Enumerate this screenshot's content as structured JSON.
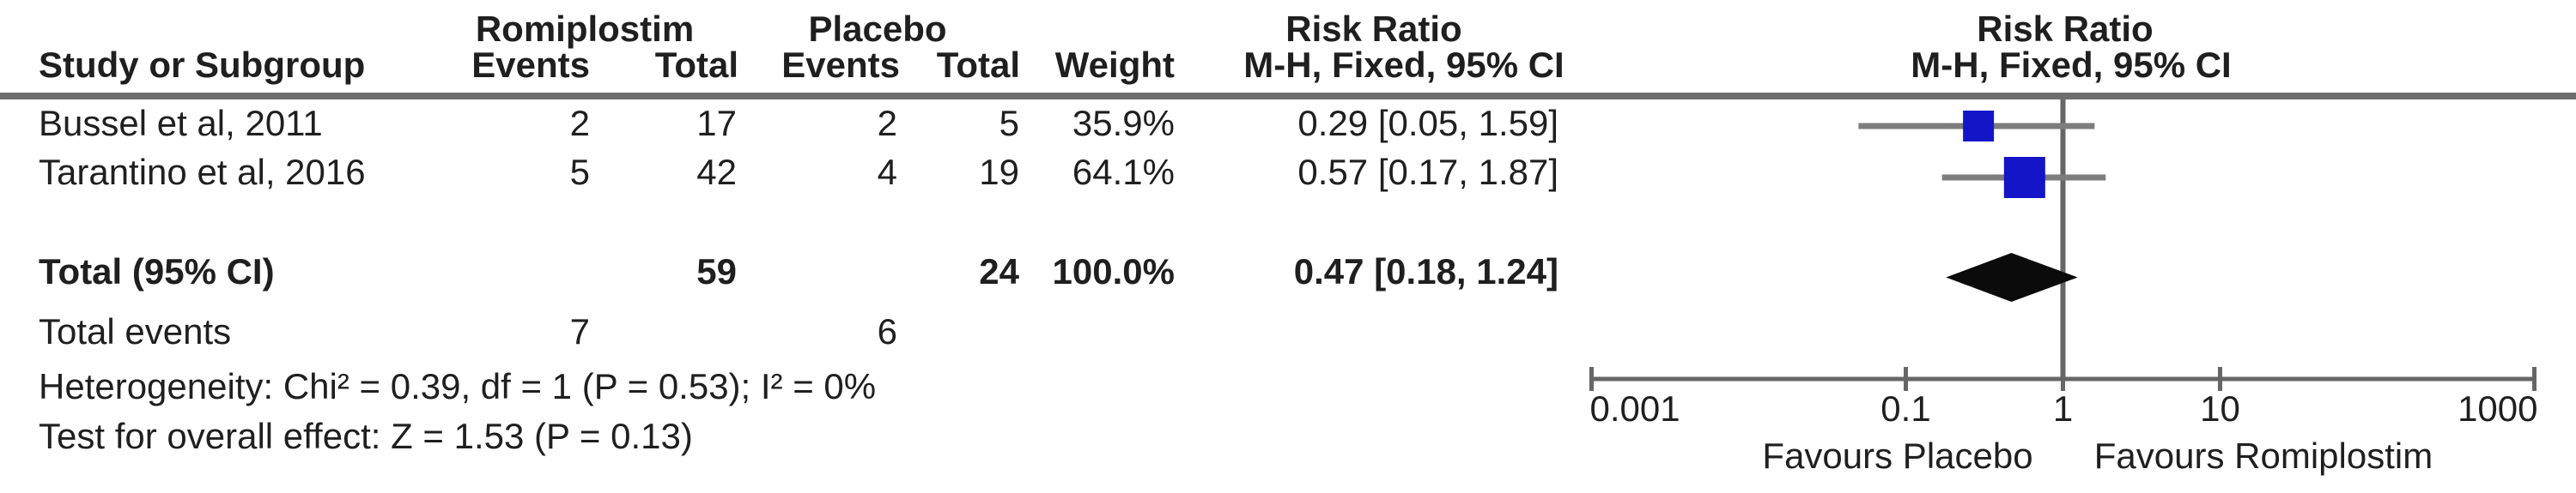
{
  "table": {
    "group1_header": "Romiplostim",
    "group2_header": "Placebo",
    "risk_ratio_header_text_col": "Risk Ratio",
    "risk_ratio_header_plot_col": "Risk Ratio",
    "method_header_text_col": "M-H, Fixed, 95% CI",
    "method_header_plot_col": "M-H, Fixed, 95% CI",
    "col_study": "Study or Subgroup",
    "col_events1": "Events",
    "col_total1": "Total",
    "col_events2": "Events",
    "col_total2": "Total",
    "col_weight": "Weight",
    "rows": [
      {
        "study": "Bussel et al, 2011",
        "e1": "2",
        "t1": "17",
        "e2": "2",
        "t2": "5",
        "weight": "35.9%",
        "rr_ci": "0.29 [0.05, 1.59]"
      },
      {
        "study": "Tarantino et al, 2016",
        "e1": "5",
        "t1": "42",
        "e2": "4",
        "t2": "19",
        "weight": "64.1%",
        "rr_ci": "0.57 [0.17, 1.87]"
      }
    ],
    "total_row": {
      "label": "Total (95% CI)",
      "t1": "59",
      "t2": "24",
      "weight": "100.0%",
      "rr_ci": "0.47 [0.18, 1.24]"
    },
    "total_events_row": {
      "label": "Total events",
      "e1": "7",
      "e2": "6"
    },
    "heterogeneity_line": "Heterogeneity: Chi² = 0.39, df = 1 (P = 0.53); I² = 0%",
    "overall_effect_line": "Test for overall effect: Z = 1.53 (P = 0.13)"
  },
  "plot": {
    "favours_left": "Favours Placebo",
    "favours_right": "Favours Romiplostim"
  },
  "colors": {
    "square_blue": "#1414c8",
    "ci_line_gray": "#7d7d7d",
    "axis_gray": "#666666",
    "rule_gray": "#6e6e6e",
    "diamond_black": "#0b0b0b"
  },
  "chart_data": {
    "type": "forest_plot",
    "effect_measure": "Risk Ratio",
    "method": "M-H, Fixed, 95% CI",
    "x_scale": "log10",
    "axis": {
      "range": [
        0.001,
        1000
      ],
      "ticks": [
        0.001,
        0.1,
        1,
        10,
        1000
      ],
      "tick_labels": [
        "0.001",
        "0.1",
        "1",
        "10",
        "1000"
      ],
      "null_line": 1
    },
    "studies": [
      {
        "name": "Bussel et al, 2011",
        "events_treatment": 2,
        "total_treatment": 17,
        "events_control": 2,
        "total_control": 5,
        "weight_pct": 35.9,
        "rr": 0.29,
        "ci_low": 0.05,
        "ci_high": 1.59
      },
      {
        "name": "Tarantino et al, 2016",
        "events_treatment": 5,
        "total_treatment": 42,
        "events_control": 4,
        "total_control": 19,
        "weight_pct": 64.1,
        "rr": 0.57,
        "ci_low": 0.17,
        "ci_high": 1.87
      }
    ],
    "total": {
      "label": "Total (95% CI)",
      "rr": 0.47,
      "ci_low": 0.18,
      "ci_high": 1.24,
      "total_treatment": 59,
      "total_control": 24,
      "weight_pct": 100.0,
      "events_treatment": 7,
      "events_control": 6
    },
    "heterogeneity": {
      "chi2": 0.39,
      "df": 1,
      "p": 0.53,
      "i2_pct": 0
    },
    "overall_effect": {
      "z": 1.53,
      "p": 0.13
    },
    "favours_left": "Favours Placebo",
    "favours_right": "Favours Romiplostim"
  }
}
